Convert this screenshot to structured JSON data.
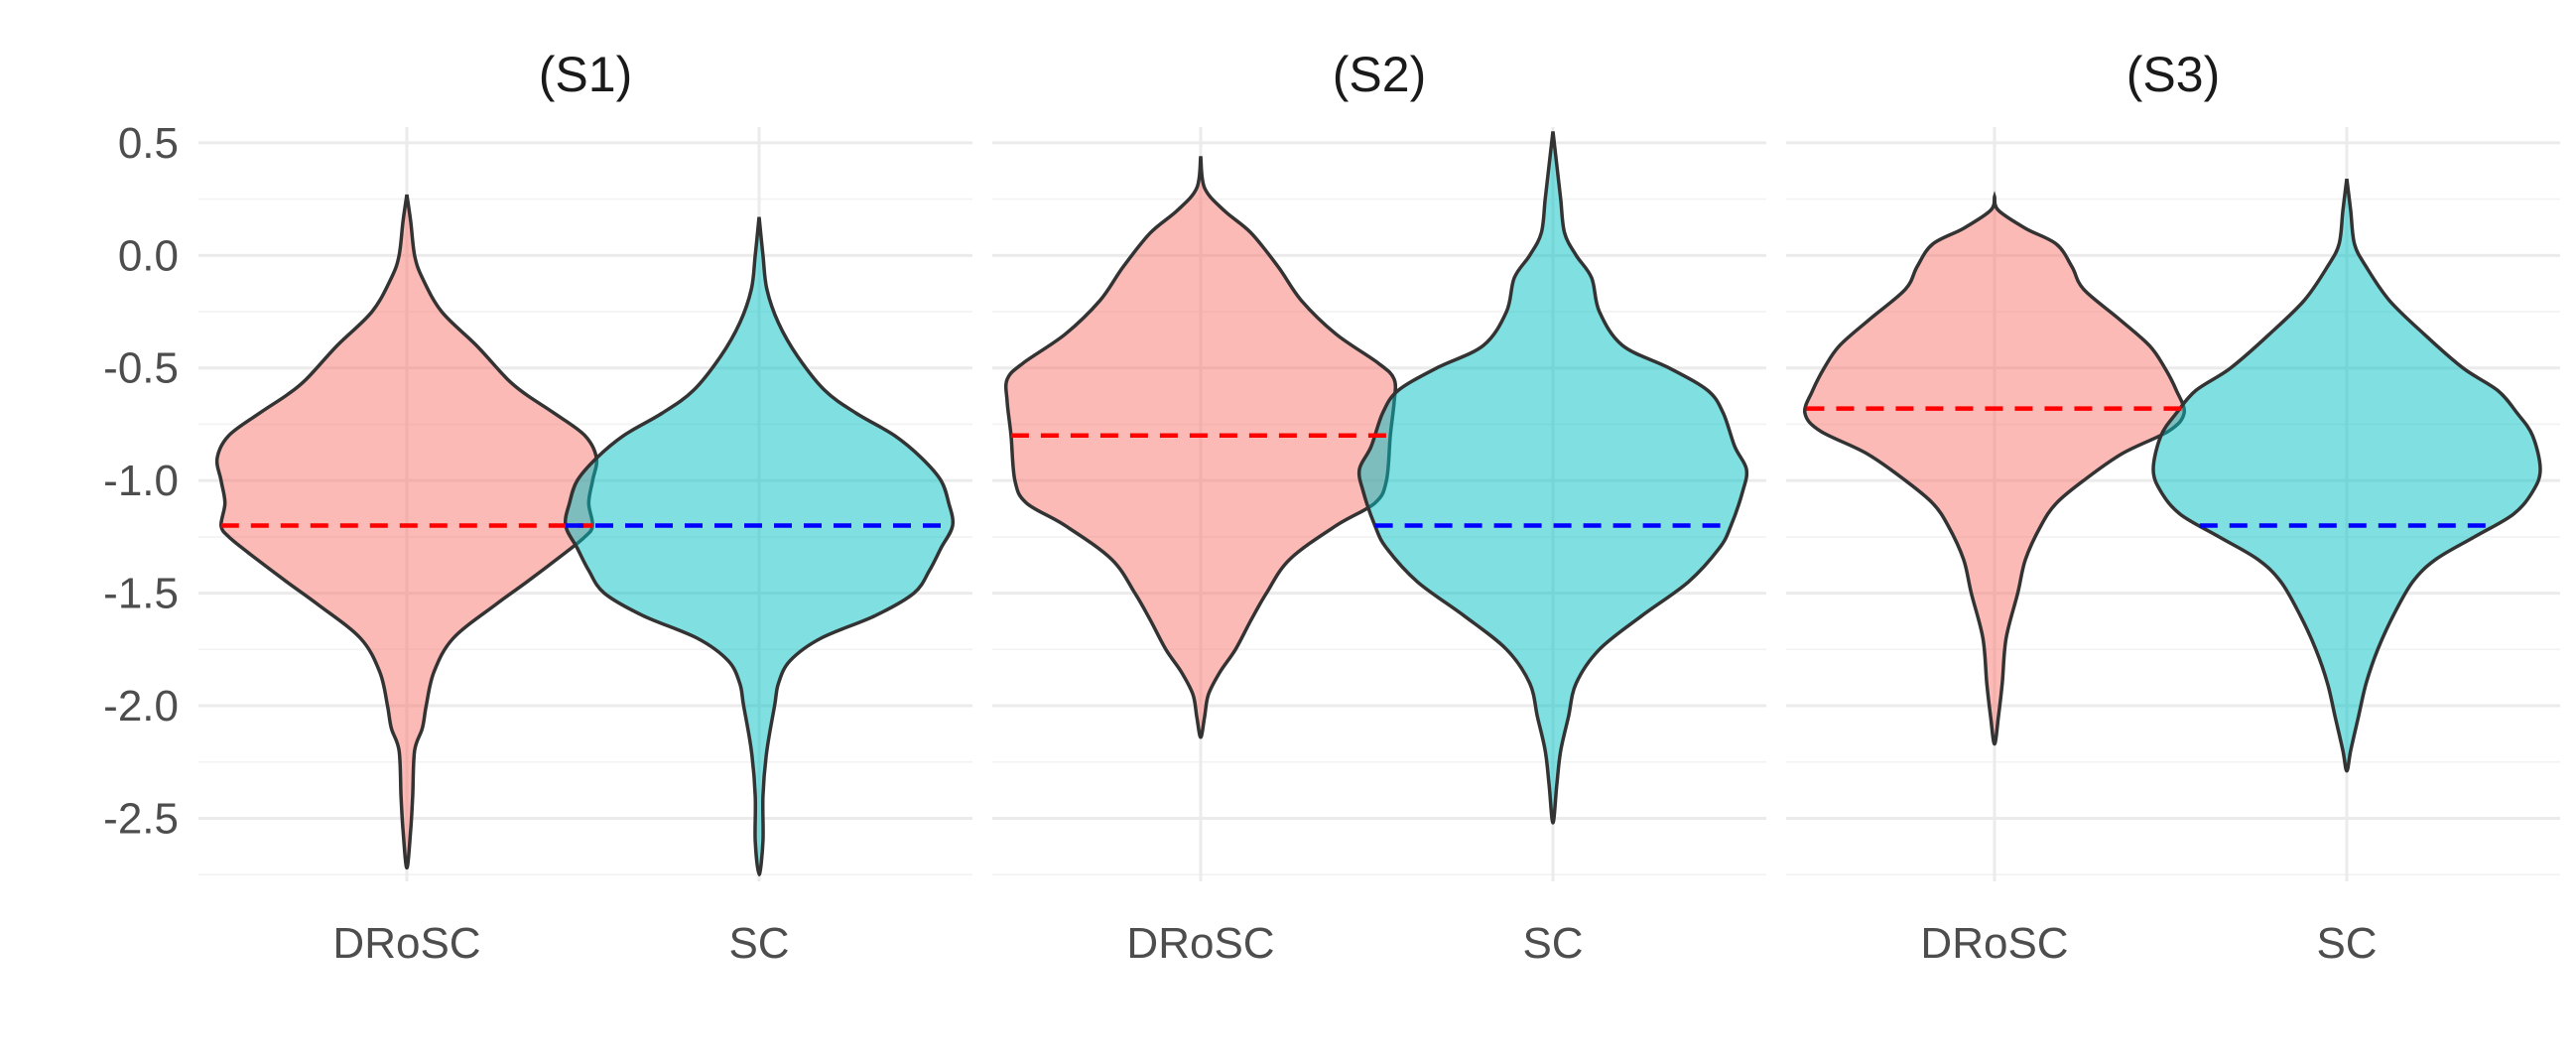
{
  "chart_data": {
    "type": "violin",
    "y_axis": {
      "ylim": [
        -2.78,
        0.57
      ],
      "major_ticks": [
        0.5,
        0.0,
        -0.5,
        -1.0,
        -1.5,
        -2.0,
        -2.5
      ],
      "tick_labels": [
        "0.5",
        "0.0",
        "-0.5",
        "-1.0",
        "-1.5",
        "-2.0",
        "-2.5"
      ],
      "minor_ticks": [
        0.25,
        -0.25,
        -0.75,
        -1.25,
        -1.75,
        -2.25,
        -2.75
      ]
    },
    "categories": [
      "DRoSC",
      "SC"
    ],
    "fill_colors": {
      "DRoSC": "#F8766D",
      "SC": "#00BFC4"
    },
    "fill_opacity": 0.5,
    "reference_line_colors": {
      "DRoSC": "#FF0000",
      "SC": "#0000FF"
    },
    "grid": true,
    "panels": [
      {
        "title": "(S1)",
        "violins": [
          {
            "category": "DRoSC",
            "ymin": -2.72,
            "ymax": 0.27,
            "reference_value": -1.2,
            "profile": [
              [
                0.27,
                0.0
              ],
              [
                0.15,
                0.01
              ],
              [
                0.0,
                0.02
              ],
              [
                -0.1,
                0.04
              ],
              [
                -0.25,
                0.09
              ],
              [
                -0.4,
                0.18
              ],
              [
                -0.55,
                0.26
              ],
              [
                -0.62,
                0.31
              ],
              [
                -0.7,
                0.38
              ],
              [
                -0.8,
                0.46
              ],
              [
                -0.9,
                0.49
              ],
              [
                -1.0,
                0.48
              ],
              [
                -1.1,
                0.47
              ],
              [
                -1.2,
                0.48
              ],
              [
                -1.25,
                0.46
              ],
              [
                -1.32,
                0.41
              ],
              [
                -1.45,
                0.31
              ],
              [
                -1.55,
                0.23
              ],
              [
                -1.7,
                0.12
              ],
              [
                -1.85,
                0.07
              ],
              [
                -2.0,
                0.05
              ],
              [
                -2.1,
                0.04
              ],
              [
                -2.2,
                0.02
              ],
              [
                -2.4,
                0.015
              ],
              [
                -2.55,
                0.01
              ],
              [
                -2.72,
                0.0
              ]
            ]
          },
          {
            "category": "SC",
            "ymin": -2.75,
            "ymax": 0.17,
            "reference_value": -1.2,
            "profile": [
              [
                0.17,
                0.0
              ],
              [
                0.0,
                0.01
              ],
              [
                -0.15,
                0.02
              ],
              [
                -0.3,
                0.05
              ],
              [
                -0.45,
                0.1
              ],
              [
                -0.6,
                0.17
              ],
              [
                -0.7,
                0.25
              ],
              [
                -0.8,
                0.35
              ],
              [
                -0.9,
                0.42
              ],
              [
                -1.0,
                0.47
              ],
              [
                -1.1,
                0.49
              ],
              [
                -1.2,
                0.5
              ],
              [
                -1.3,
                0.47
              ],
              [
                -1.4,
                0.44
              ],
              [
                -1.5,
                0.4
              ],
              [
                -1.6,
                0.3
              ],
              [
                -1.7,
                0.16
              ],
              [
                -1.8,
                0.08
              ],
              [
                -1.9,
                0.05
              ],
              [
                -2.0,
                0.04
              ],
              [
                -2.2,
                0.02
              ],
              [
                -2.4,
                0.01
              ],
              [
                -2.6,
                0.01
              ],
              [
                -2.75,
                0.0
              ]
            ]
          }
        ]
      },
      {
        "title": "(S2)",
        "violins": [
          {
            "category": "DRoSC",
            "ymin": -2.14,
            "ymax": 0.44,
            "reference_value": -0.8,
            "profile": [
              [
                0.44,
                0.0
              ],
              [
                0.3,
                0.01
              ],
              [
                0.2,
                0.06
              ],
              [
                0.1,
                0.13
              ],
              [
                -0.05,
                0.2
              ],
              [
                -0.2,
                0.26
              ],
              [
                -0.35,
                0.35
              ],
              [
                -0.48,
                0.46
              ],
              [
                -0.55,
                0.5
              ],
              [
                -0.65,
                0.5
              ],
              [
                -0.8,
                0.49
              ],
              [
                -1.0,
                0.48
              ],
              [
                -1.1,
                0.45
              ],
              [
                -1.2,
                0.35
              ],
              [
                -1.35,
                0.23
              ],
              [
                -1.5,
                0.17
              ],
              [
                -1.62,
                0.13
              ],
              [
                -1.75,
                0.09
              ],
              [
                -1.85,
                0.05
              ],
              [
                -1.95,
                0.02
              ],
              [
                -2.05,
                0.01
              ],
              [
                -2.14,
                0.0
              ]
            ]
          },
          {
            "category": "SC",
            "ymin": -2.52,
            "ymax": 0.55,
            "reference_value": -1.2,
            "profile": [
              [
                0.55,
                0.0
              ],
              [
                0.4,
                0.01
              ],
              [
                0.25,
                0.02
              ],
              [
                0.1,
                0.03
              ],
              [
                0.0,
                0.06
              ],
              [
                -0.1,
                0.1
              ],
              [
                -0.25,
                0.12
              ],
              [
                -0.4,
                0.18
              ],
              [
                -0.5,
                0.3
              ],
              [
                -0.6,
                0.4
              ],
              [
                -0.7,
                0.44
              ],
              [
                -0.85,
                0.47
              ],
              [
                -0.95,
                0.5
              ],
              [
                -1.05,
                0.49
              ],
              [
                -1.2,
                0.46
              ],
              [
                -1.3,
                0.43
              ],
              [
                -1.45,
                0.35
              ],
              [
                -1.6,
                0.23
              ],
              [
                -1.75,
                0.12
              ],
              [
                -1.9,
                0.06
              ],
              [
                -2.05,
                0.04
              ],
              [
                -2.2,
                0.02
              ],
              [
                -2.35,
                0.01
              ],
              [
                -2.52,
                0.0
              ]
            ]
          }
        ]
      },
      {
        "title": "(S3)",
        "violins": [
          {
            "category": "DRoSC",
            "ymin": -2.17,
            "ymax": 0.26,
            "reference_value": -0.68,
            "profile": [
              [
                0.26,
                0.0
              ],
              [
                0.2,
                0.01
              ],
              [
                0.12,
                0.08
              ],
              [
                0.05,
                0.16
              ],
              [
                -0.05,
                0.2
              ],
              [
                -0.15,
                0.23
              ],
              [
                -0.28,
                0.32
              ],
              [
                -0.4,
                0.4
              ],
              [
                -0.5,
                0.44
              ],
              [
                -0.6,
                0.47
              ],
              [
                -0.7,
                0.49
              ],
              [
                -0.78,
                0.45
              ],
              [
                -0.88,
                0.33
              ],
              [
                -1.0,
                0.23
              ],
              [
                -1.1,
                0.16
              ],
              [
                -1.2,
                0.12
              ],
              [
                -1.35,
                0.08
              ],
              [
                -1.5,
                0.06
              ],
              [
                -1.7,
                0.03
              ],
              [
                -1.9,
                0.02
              ],
              [
                -2.05,
                0.01
              ],
              [
                -2.17,
                0.0
              ]
            ]
          },
          {
            "category": "SC",
            "ymin": -2.29,
            "ymax": 0.34,
            "reference_value": -1.2,
            "profile": [
              [
                0.34,
                0.0
              ],
              [
                0.2,
                0.01
              ],
              [
                0.05,
                0.02
              ],
              [
                -0.05,
                0.05
              ],
              [
                -0.2,
                0.11
              ],
              [
                -0.35,
                0.2
              ],
              [
                -0.5,
                0.3
              ],
              [
                -0.6,
                0.39
              ],
              [
                -0.7,
                0.44
              ],
              [
                -0.8,
                0.48
              ],
              [
                -0.95,
                0.5
              ],
              [
                -1.05,
                0.48
              ],
              [
                -1.15,
                0.43
              ],
              [
                -1.25,
                0.33
              ],
              [
                -1.35,
                0.23
              ],
              [
                -1.45,
                0.17
              ],
              [
                -1.6,
                0.12
              ],
              [
                -1.75,
                0.08
              ],
              [
                -1.9,
                0.05
              ],
              [
                -2.05,
                0.03
              ],
              [
                -2.2,
                0.01
              ],
              [
                -2.29,
                0.0
              ]
            ]
          }
        ]
      }
    ]
  }
}
